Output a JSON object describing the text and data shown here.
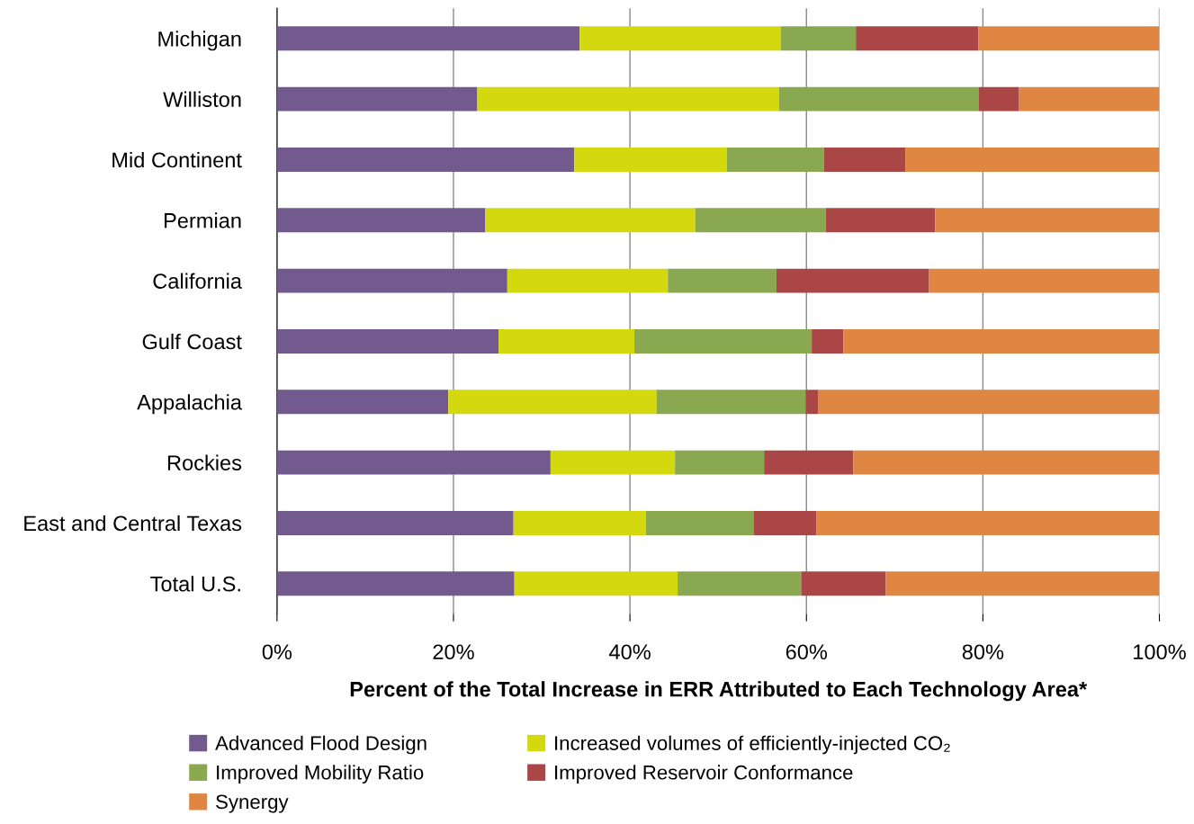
{
  "chart_data": {
    "type": "bar",
    "orientation": "horizontal",
    "stacked": true,
    "xlabel": "Percent of the Total Increase in ERR Attributed to Each Technology Area*",
    "categories": [
      "Michigan",
      "Williston",
      "Mid Continent",
      "Permian",
      "California",
      "Gulf Coast",
      "Appalachia",
      "Rockies",
      "East and Central Texas",
      "Total U.S."
    ],
    "series": [
      {
        "name": "Advanced Flood Design",
        "color": "#725a8f",
        "values": [
          34.3,
          22.7,
          33.7,
          23.6,
          26.1,
          25.1,
          19.4,
          31.0,
          26.8,
          26.9
        ]
      },
      {
        "name": "Increased volumes of efficiently-injected CO₂",
        "color": "#d3d80f",
        "values": [
          22.8,
          34.2,
          17.3,
          23.8,
          18.2,
          15.4,
          23.6,
          14.1,
          15.0,
          18.5
        ]
      },
      {
        "name": "Improved Mobility Ratio",
        "color": "#8aa84f",
        "values": [
          8.5,
          22.6,
          11.0,
          14.8,
          12.3,
          20.1,
          16.9,
          10.1,
          12.2,
          14.0
        ]
      },
      {
        "name": "Improved Reservoir Conformance",
        "color": "#ab4646",
        "values": [
          13.9,
          4.6,
          9.2,
          12.4,
          17.3,
          3.6,
          1.4,
          10.1,
          7.1,
          9.6
        ]
      },
      {
        "name": "Synergy",
        "color": "#e08643",
        "values": [
          20.5,
          15.9,
          28.8,
          25.4,
          26.1,
          35.8,
          38.7,
          34.7,
          38.9,
          31.0
        ]
      }
    ],
    "xlim": [
      0,
      100
    ],
    "xticks": [
      {
        "value": 0,
        "label": "0%"
      },
      {
        "value": 20,
        "label": "20%"
      },
      {
        "value": 40,
        "label": "40%"
      },
      {
        "value": 60,
        "label": "60%"
      },
      {
        "value": 80,
        "label": "80%"
      },
      {
        "value": 100,
        "label": "100%"
      }
    ],
    "grid": "x",
    "legend": "bottom"
  }
}
